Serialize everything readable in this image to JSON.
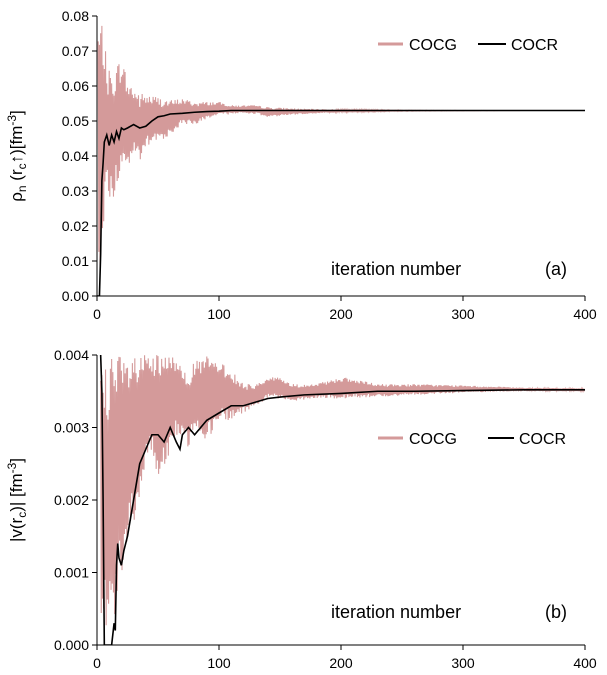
{
  "colors": {
    "cocg": "#d49a9a",
    "cocr": "#000000",
    "axis": "#000000"
  },
  "chart_data": [
    {
      "id": "a",
      "type": "line",
      "title": "",
      "xlabel": "",
      "ylabel_parts": {
        "base": "ρ",
        "sub1": "n",
        "mid1": " (r",
        "sub2": "c",
        "mid2": "↑)[fm",
        "sup": "-3",
        "end": "]"
      },
      "xlim": [
        0,
        400
      ],
      "ylim": [
        0,
        0.08
      ],
      "xticks": [
        0,
        100,
        200,
        300,
        400
      ],
      "yticks": [
        "0.00",
        "0.01",
        "0.02",
        "0.03",
        "0.04",
        "0.05",
        "0.06",
        "0.07",
        "0.08"
      ],
      "annotation": "iteration number",
      "panel_label": "(a)",
      "legend_placement": "top-right",
      "grid": false,
      "series": [
        {
          "name": "COCG",
          "color_key": "cocg",
          "envelope": {
            "x": [
              1,
              2,
              3,
              5,
              8,
              12,
              16,
              20,
              25,
              30,
              35,
              40,
              50,
              60,
              70,
              80,
              90,
              100,
              110,
              120,
              130,
              140,
              150,
              170,
              200,
              250,
              300,
              350,
              400
            ],
            "upper": [
              0.08,
              0.08,
              0.08,
              0.078,
              0.066,
              0.064,
              0.066,
              0.069,
              0.062,
              0.06,
              0.058,
              0.058,
              0.057,
              0.056,
              0.0565,
              0.0555,
              0.0555,
              0.0555,
              0.0545,
              0.0545,
              0.0545,
              0.054,
              0.0538,
              0.0535,
              0.0533,
              0.0531,
              0.053,
              0.053,
              0.053
            ],
            "lower": [
              0.0,
              0.0,
              0.013,
              0.02,
              0.028,
              0.026,
              0.03,
              0.036,
              0.036,
              0.04,
              0.038,
              0.042,
              0.044,
              0.046,
              0.049,
              0.049,
              0.0505,
              0.0515,
              0.052,
              0.0522,
              0.052,
              0.051,
              0.0515,
              0.052,
              0.0525,
              0.0528,
              0.0529,
              0.053,
              0.053
            ]
          }
        },
        {
          "name": "COCR",
          "color_key": "cocr",
          "x": [
            0,
            2,
            3,
            4,
            5,
            6,
            8,
            10,
            12,
            14,
            16,
            18,
            20,
            22,
            25,
            30,
            35,
            40,
            45,
            50,
            55,
            60,
            70,
            80,
            90,
            100,
            110,
            130,
            150,
            200,
            300,
            400
          ],
          "y": [
            0.0,
            0.0,
            0.012,
            0.033,
            0.038,
            0.044,
            0.046,
            0.043,
            0.046,
            0.044,
            0.047,
            0.045,
            0.048,
            0.0475,
            0.048,
            0.049,
            0.048,
            0.0485,
            0.05,
            0.0512,
            0.0515,
            0.052,
            0.0522,
            0.0525,
            0.0527,
            0.0528,
            0.053,
            0.053,
            0.053,
            0.053,
            0.053,
            0.053
          ]
        }
      ]
    },
    {
      "id": "b",
      "type": "line",
      "title": "",
      "xlabel": "",
      "ylabel_parts": {
        "pre": "|v(r",
        "sub": "c",
        "mid": ")| [fm",
        "sup": "-3",
        "end": "]"
      },
      "xlim": [
        0,
        400
      ],
      "ylim": [
        0,
        0.004
      ],
      "xticks": [
        0,
        100,
        200,
        300,
        400
      ],
      "yticks": [
        "0.000",
        "0.001",
        "0.002",
        "0.003",
        "0.004"
      ],
      "annotation": "iteration number",
      "panel_label": "(b)",
      "legend_placement": "center-right",
      "grid": false,
      "series": [
        {
          "name": "COCG",
          "color_key": "cocg",
          "envelope": {
            "x": [
              3,
              4,
              6,
              10,
              14,
              18,
              20,
              24,
              28,
              32,
              36,
              40,
              45,
              50,
              55,
              60,
              65,
              70,
              75,
              80,
              90,
              100,
              110,
              120,
              130,
              140,
              150,
              160,
              180,
              200,
              230,
              260,
              300,
              350,
              400
            ],
            "upper": [
              0.004,
              0.004,
              0.004,
              0.004,
              0.004,
              0.004,
              0.004,
              0.004,
              0.004,
              0.004,
              0.004,
              0.004,
              0.004,
              0.004,
              0.004,
              0.004,
              0.004,
              0.0039,
              0.0038,
              0.0039,
              0.004,
              0.0039,
              0.0038,
              0.0036,
              0.0036,
              0.0037,
              0.0037,
              0.0036,
              0.0036,
              0.0037,
              0.0036,
              0.0036,
              0.00358,
              0.00355,
              0.00354
            ],
            "lower": [
              0.0,
              0.0,
              0.0,
              0.0,
              0.0002,
              0.0008,
              0.0008,
              0.0011,
              0.0016,
              0.0018,
              0.002,
              0.0025,
              0.0027,
              0.0021,
              0.0024,
              0.0026,
              0.0029,
              0.0028,
              0.0027,
              0.003,
              0.0028,
              0.0031,
              0.0031,
              0.0032,
              0.0033,
              0.0034,
              0.0034,
              0.00335,
              0.0034,
              0.0034,
              0.00342,
              0.00345,
              0.00348,
              0.0035,
              0.0035
            ]
          }
        },
        {
          "name": "COCR",
          "color_key": "cocr",
          "x": [
            3,
            4,
            5,
            6,
            8,
            10,
            12,
            14,
            15,
            16,
            17,
            18,
            20,
            22,
            25,
            30,
            35,
            40,
            45,
            50,
            55,
            60,
            65,
            68,
            70,
            75,
            80,
            90,
            100,
            110,
            120,
            130,
            140,
            150,
            170,
            200,
            230,
            260,
            300,
            350,
            400
          ],
          "y": [
            0.004,
            0.0035,
            0.002,
            0.0,
            0.0,
            0.0,
            0.0,
            0.0003,
            0.0002,
            0.0011,
            0.0014,
            0.0012,
            0.0011,
            0.0013,
            0.0015,
            0.002,
            0.0025,
            0.0027,
            0.0029,
            0.0029,
            0.0028,
            0.003,
            0.0028,
            0.0027,
            0.0029,
            0.003,
            0.0029,
            0.0031,
            0.0032,
            0.0033,
            0.0033,
            0.00335,
            0.0034,
            0.00342,
            0.00345,
            0.00347,
            0.0035,
            0.0035,
            0.00351,
            0.00352,
            0.00352
          ]
        }
      ]
    }
  ]
}
